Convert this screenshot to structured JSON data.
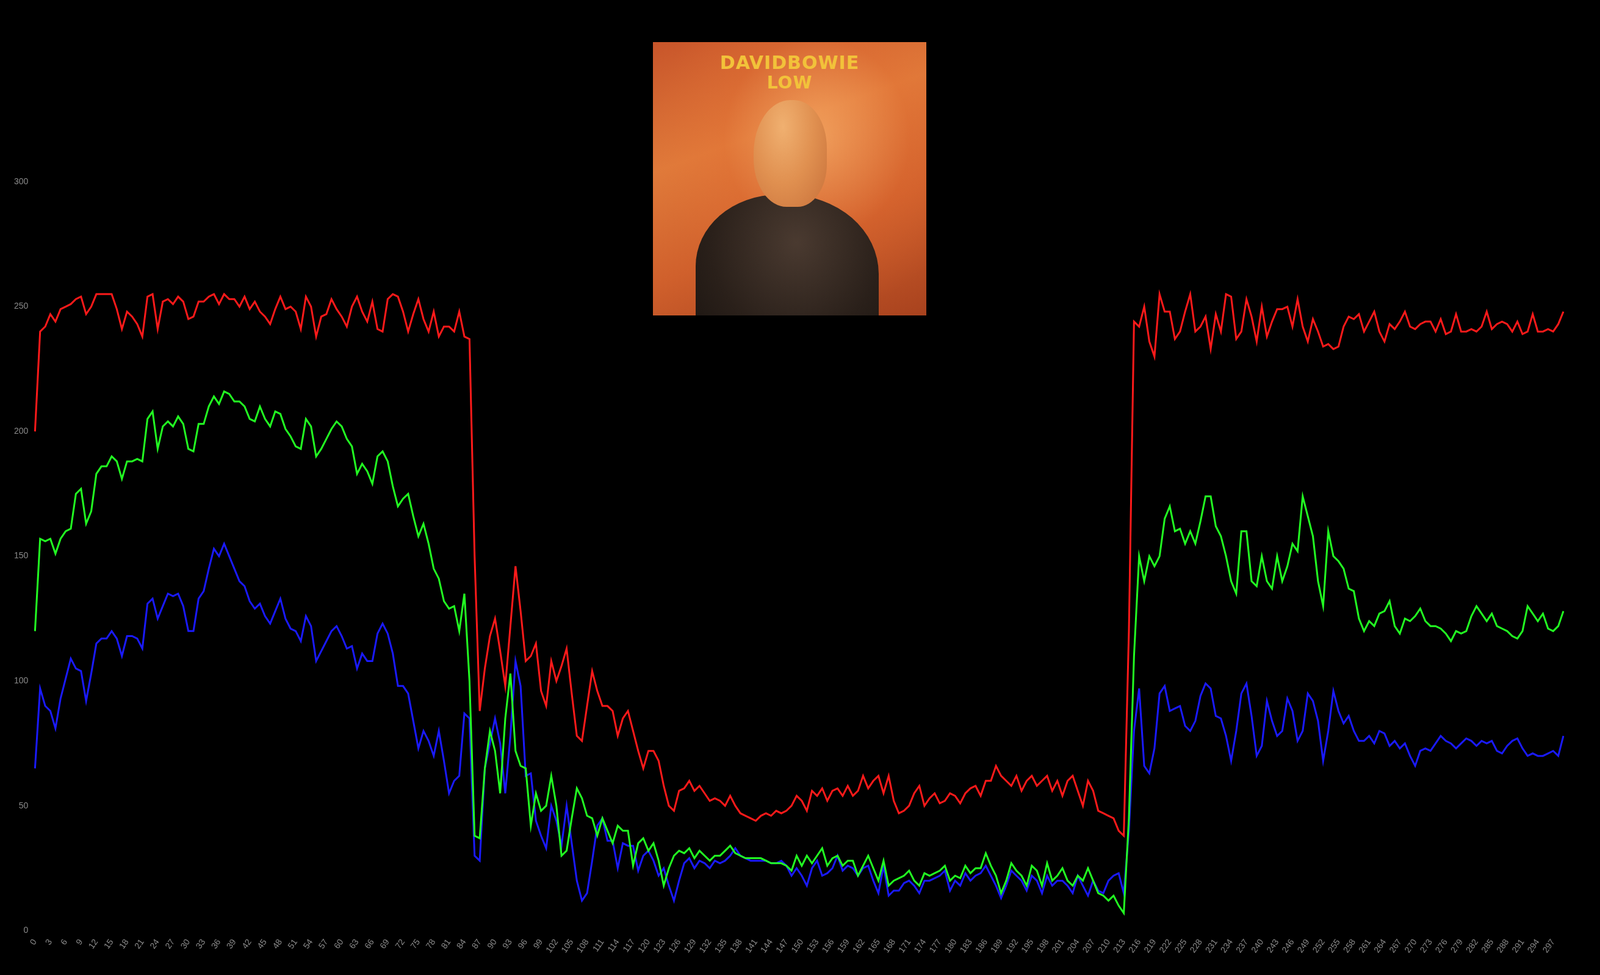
{
  "chart_data": {
    "type": "line",
    "categories": [
      "0",
      null,
      null,
      "3",
      null,
      null,
      "6",
      null,
      null,
      "9",
      null,
      null,
      "12",
      null,
      null,
      "15",
      null,
      null,
      "18",
      null,
      null,
      "21",
      null,
      null,
      "24",
      null,
      null,
      "27",
      null,
      null,
      "30",
      null,
      null,
      "33",
      null,
      null,
      "36",
      null,
      null,
      "39",
      null,
      null,
      "42",
      null,
      null,
      "45",
      null,
      null,
      "48",
      null,
      null,
      "51",
      null,
      null,
      "54",
      null,
      null,
      "57",
      null,
      null,
      "60",
      null,
      null,
      "63",
      null,
      null,
      "66",
      null,
      null,
      "69",
      null,
      null,
      "72",
      null,
      null,
      "75",
      null,
      null,
      "78",
      null,
      null,
      "81",
      null,
      null,
      "84",
      null,
      null,
      "87",
      null,
      null,
      "90",
      null,
      null,
      "93",
      null,
      null,
      "96",
      null,
      null,
      "99",
      null,
      null,
      "102",
      null,
      null,
      "105",
      null,
      null,
      "108",
      null,
      null,
      "111",
      null,
      null,
      "114",
      null,
      null,
      "117",
      null,
      null,
      "120",
      null,
      null,
      "123",
      null,
      null,
      "126",
      null,
      null,
      "129",
      null,
      null,
      "132",
      null,
      null,
      "135",
      null,
      null,
      "138",
      null,
      null,
      "141",
      null,
      null,
      "144",
      null,
      null,
      "147",
      null,
      null,
      "150",
      null,
      null,
      "153",
      null,
      null,
      "156",
      null,
      null,
      "159",
      null,
      null,
      "162",
      null,
      null,
      "165",
      null,
      null,
      "168",
      null,
      null,
      "171",
      null,
      null,
      "174",
      null,
      null,
      "177",
      null,
      null,
      "180",
      null,
      null,
      "183",
      null,
      null,
      "186",
      null,
      null,
      "189",
      null,
      null,
      "192",
      null,
      null,
      "195",
      null,
      null,
      "198",
      null,
      null,
      "201",
      null,
      null,
      "204",
      null,
      null,
      "207",
      null,
      null,
      "210",
      null,
      null,
      "213",
      null,
      null,
      "216",
      null,
      null,
      "219",
      null,
      null,
      "222",
      null,
      null,
      "225",
      null,
      null,
      "228",
      null,
      null,
      "231",
      null,
      null,
      "234",
      null,
      null,
      "237",
      null,
      null,
      "240",
      null,
      null,
      "243",
      null,
      null,
      "246",
      null,
      null,
      "249",
      null,
      null,
      "252",
      null,
      null,
      "255",
      null,
      null,
      "258",
      null,
      null,
      "261",
      null,
      null,
      "264",
      null,
      null,
      "267",
      null,
      null,
      "270",
      null,
      null,
      "273",
      null,
      null,
      "276",
      null,
      null,
      "279",
      null,
      null,
      "282",
      null,
      null,
      "285",
      null,
      null,
      "288",
      null,
      null,
      "291",
      null,
      null,
      "294",
      null,
      null,
      "297",
      null,
      null
    ],
    "series": [
      {
        "color": "#ff1a1a",
        "values": [
          200,
          240,
          242,
          247,
          244,
          249,
          250,
          251,
          253,
          254,
          247,
          250,
          255,
          255,
          255,
          255,
          249,
          241,
          248,
          246,
          243,
          238,
          254,
          255,
          241,
          252,
          253,
          251,
          254,
          252,
          245,
          246,
          252,
          252,
          254,
          255,
          251,
          255,
          253,
          253,
          250,
          254,
          249,
          252,
          248,
          246,
          243,
          249,
          254,
          249,
          250,
          248,
          241,
          254,
          250,
          238,
          246,
          247,
          253,
          249,
          246,
          242,
          250,
          254,
          248,
          244,
          252,
          241,
          240,
          253,
          255,
          254,
          248,
          240,
          247,
          253,
          245,
          240,
          248,
          238,
          242,
          242,
          240,
          248,
          238,
          237,
          150,
          88,
          105,
          118,
          125,
          112,
          98,
          122,
          146,
          128,
          108,
          110,
          115,
          96,
          90,
          108,
          100,
          106,
          113,
          95,
          78,
          76,
          90,
          104,
          96,
          90,
          90,
          88,
          78,
          85,
          88,
          80,
          72,
          65,
          72,
          72,
          68,
          58,
          50,
          48,
          56,
          57,
          60,
          56,
          58,
          55,
          52,
          53,
          52,
          50,
          54,
          50,
          47,
          46,
          45,
          44,
          46,
          47,
          46,
          48,
          47,
          48,
          50,
          54,
          52,
          48,
          56,
          54,
          57,
          52,
          56,
          57,
          54,
          58,
          54,
          56,
          62,
          57,
          60,
          62,
          55,
          62,
          52,
          47,
          48,
          50,
          55,
          58,
          50,
          53,
          55,
          51,
          52,
          55,
          54,
          51,
          55,
          57,
          58,
          54,
          60,
          60,
          66,
          62,
          60,
          58,
          62,
          56,
          60,
          62,
          58,
          60,
          62,
          56,
          60,
          54,
          60,
          62,
          56,
          50,
          60,
          56,
          48,
          47,
          46,
          45,
          40,
          38,
          120,
          244,
          242,
          250,
          236,
          230,
          255,
          248,
          248,
          237,
          240,
          248,
          255,
          240,
          242,
          246,
          233,
          247,
          240,
          255,
          254,
          237,
          240,
          253,
          246,
          236,
          250,
          238,
          244,
          249,
          249,
          250,
          242,
          253,
          242,
          236,
          245,
          240,
          234,
          235,
          233,
          234,
          242,
          246,
          245,
          247,
          240,
          244,
          248,
          240,
          236,
          243,
          241,
          244,
          248,
          242,
          241,
          243,
          244,
          244,
          240,
          245,
          239,
          240,
          247,
          240,
          240,
          241,
          240,
          242,
          248,
          241,
          243,
          244,
          243,
          240,
          244,
          239,
          240,
          247,
          240,
          240,
          241,
          240,
          243,
          248
        ]
      },
      {
        "color": "#22ff22",
        "values": [
          120,
          157,
          156,
          157,
          151,
          157,
          160,
          161,
          175,
          177,
          163,
          168,
          183,
          186,
          186,
          190,
          188,
          181,
          188,
          188,
          189,
          188,
          205,
          208,
          193,
          202,
          204,
          202,
          206,
          203,
          193,
          192,
          203,
          203,
          210,
          214,
          211,
          216,
          215,
          212,
          212,
          210,
          205,
          204,
          210,
          205,
          202,
          208,
          207,
          201,
          198,
          194,
          193,
          205,
          202,
          190,
          193,
          197,
          201,
          204,
          202,
          197,
          194,
          183,
          187,
          184,
          179,
          190,
          192,
          188,
          178,
          170,
          173,
          175,
          166,
          158,
          163,
          155,
          145,
          141,
          132,
          129,
          130,
          120,
          135,
          100,
          38,
          37,
          65,
          80,
          72,
          55,
          85,
          103,
          72,
          66,
          65,
          42,
          55,
          48,
          50,
          62,
          50,
          30,
          32,
          45,
          57,
          53,
          46,
          45,
          38,
          45,
          40,
          35,
          42,
          40,
          40,
          26,
          35,
          37,
          32,
          35,
          28,
          18,
          25,
          30,
          32,
          31,
          33,
          29,
          32,
          30,
          28,
          30,
          30,
          32,
          34,
          31,
          30,
          29,
          29,
          29,
          29,
          28,
          27,
          27,
          27,
          26,
          24,
          30,
          26,
          30,
          27,
          30,
          33,
          26,
          29,
          30,
          26,
          28,
          28,
          22,
          26,
          30,
          25,
          20,
          28,
          18,
          20,
          21,
          22,
          24,
          20,
          18,
          23,
          22,
          23,
          24,
          26,
          20,
          22,
          21,
          26,
          23,
          25,
          25,
          31,
          26,
          22,
          15,
          20,
          27,
          24,
          22,
          18,
          26,
          24,
          18,
          27,
          20,
          22,
          25,
          20,
          18,
          22,
          20,
          25,
          20,
          15,
          14,
          12,
          14,
          10,
          7,
          45,
          110,
          150,
          140,
          150,
          146,
          150,
          165,
          170,
          160,
          161,
          155,
          160,
          155,
          164,
          174,
          174,
          162,
          158,
          150,
          140,
          135,
          160,
          160,
          140,
          138,
          150,
          140,
          137,
          150,
          140,
          146,
          155,
          152,
          174,
          166,
          158,
          140,
          130,
          160,
          150,
          148,
          145,
          137,
          136,
          125,
          120,
          124,
          122,
          127,
          128,
          132,
          122,
          119,
          125,
          124,
          126,
          129,
          124,
          122,
          122,
          121,
          119,
          116,
          120,
          119,
          120,
          126,
          130,
          127,
          124,
          127,
          122,
          121,
          120,
          118,
          117,
          120,
          130,
          127,
          124,
          127,
          121,
          120,
          122,
          128
        ]
      },
      {
        "color": "#1a1aff",
        "values": [
          65,
          97,
          90,
          88,
          81,
          93,
          101,
          109,
          105,
          104,
          92,
          103,
          115,
          117,
          117,
          120,
          117,
          110,
          118,
          118,
          117,
          113,
          131,
          133,
          125,
          130,
          135,
          134,
          135,
          130,
          120,
          120,
          133,
          136,
          145,
          153,
          150,
          155,
          150,
          145,
          140,
          138,
          132,
          129,
          131,
          126,
          123,
          128,
          133,
          125,
          121,
          120,
          116,
          126,
          122,
          108,
          112,
          116,
          120,
          122,
          118,
          113,
          114,
          105,
          111,
          108,
          108,
          119,
          123,
          119,
          111,
          98,
          98,
          95,
          84,
          73,
          80,
          76,
          70,
          80,
          68,
          55,
          60,
          62,
          87,
          85,
          30,
          28,
          65,
          75,
          85,
          75,
          55,
          78,
          108,
          98,
          62,
          63,
          44,
          38,
          33,
          50,
          44,
          34,
          50,
          35,
          20,
          12,
          15,
          28,
          42,
          45,
          36,
          36,
          25,
          35,
          34,
          34,
          24,
          30,
          32,
          28,
          22,
          25,
          18,
          12,
          20,
          27,
          29,
          25,
          28,
          27,
          25,
          28,
          27,
          28,
          30,
          33,
          30,
          29,
          28,
          28,
          28,
          28,
          27,
          27,
          28,
          26,
          22,
          25,
          22,
          18,
          25,
          28,
          22,
          23,
          25,
          30,
          24,
          26,
          25,
          22,
          25,
          26,
          20,
          15,
          26,
          14,
          16,
          16,
          19,
          20,
          18,
          15,
          20,
          20,
          21,
          22,
          24,
          16,
          20,
          18,
          23,
          20,
          22,
          23,
          26,
          22,
          18,
          13,
          18,
          24,
          22,
          20,
          16,
          22,
          20,
          15,
          22,
          18,
          20,
          20,
          18,
          15,
          22,
          18,
          14,
          20,
          16,
          15,
          20,
          22,
          23,
          15,
          40,
          80,
          97,
          66,
          63,
          73,
          95,
          98,
          88,
          89,
          90,
          82,
          80,
          84,
          94,
          99,
          97,
          86,
          85,
          78,
          68,
          80,
          95,
          99,
          86,
          70,
          74,
          92,
          84,
          78,
          80,
          93,
          88,
          76,
          80,
          95,
          92,
          84,
          68,
          80,
          96,
          88,
          83,
          86,
          80,
          76,
          76,
          78,
          75,
          80,
          79,
          74,
          76,
          73,
          75,
          70,
          66,
          72,
          73,
          72,
          75,
          78,
          76,
          75,
          73,
          75,
          77,
          76,
          74,
          76,
          75,
          76,
          72,
          71,
          74,
          76,
          77,
          73,
          70,
          71,
          70,
          70,
          71,
          72,
          70,
          78
        ]
      }
    ],
    "ylim": [
      0,
      300
    ],
    "yticks": [
      0,
      50,
      100,
      150,
      200,
      250,
      300
    ],
    "grid": false,
    "annotations": [
      "DAVIDBOWIE",
      "LOW"
    ]
  }
}
